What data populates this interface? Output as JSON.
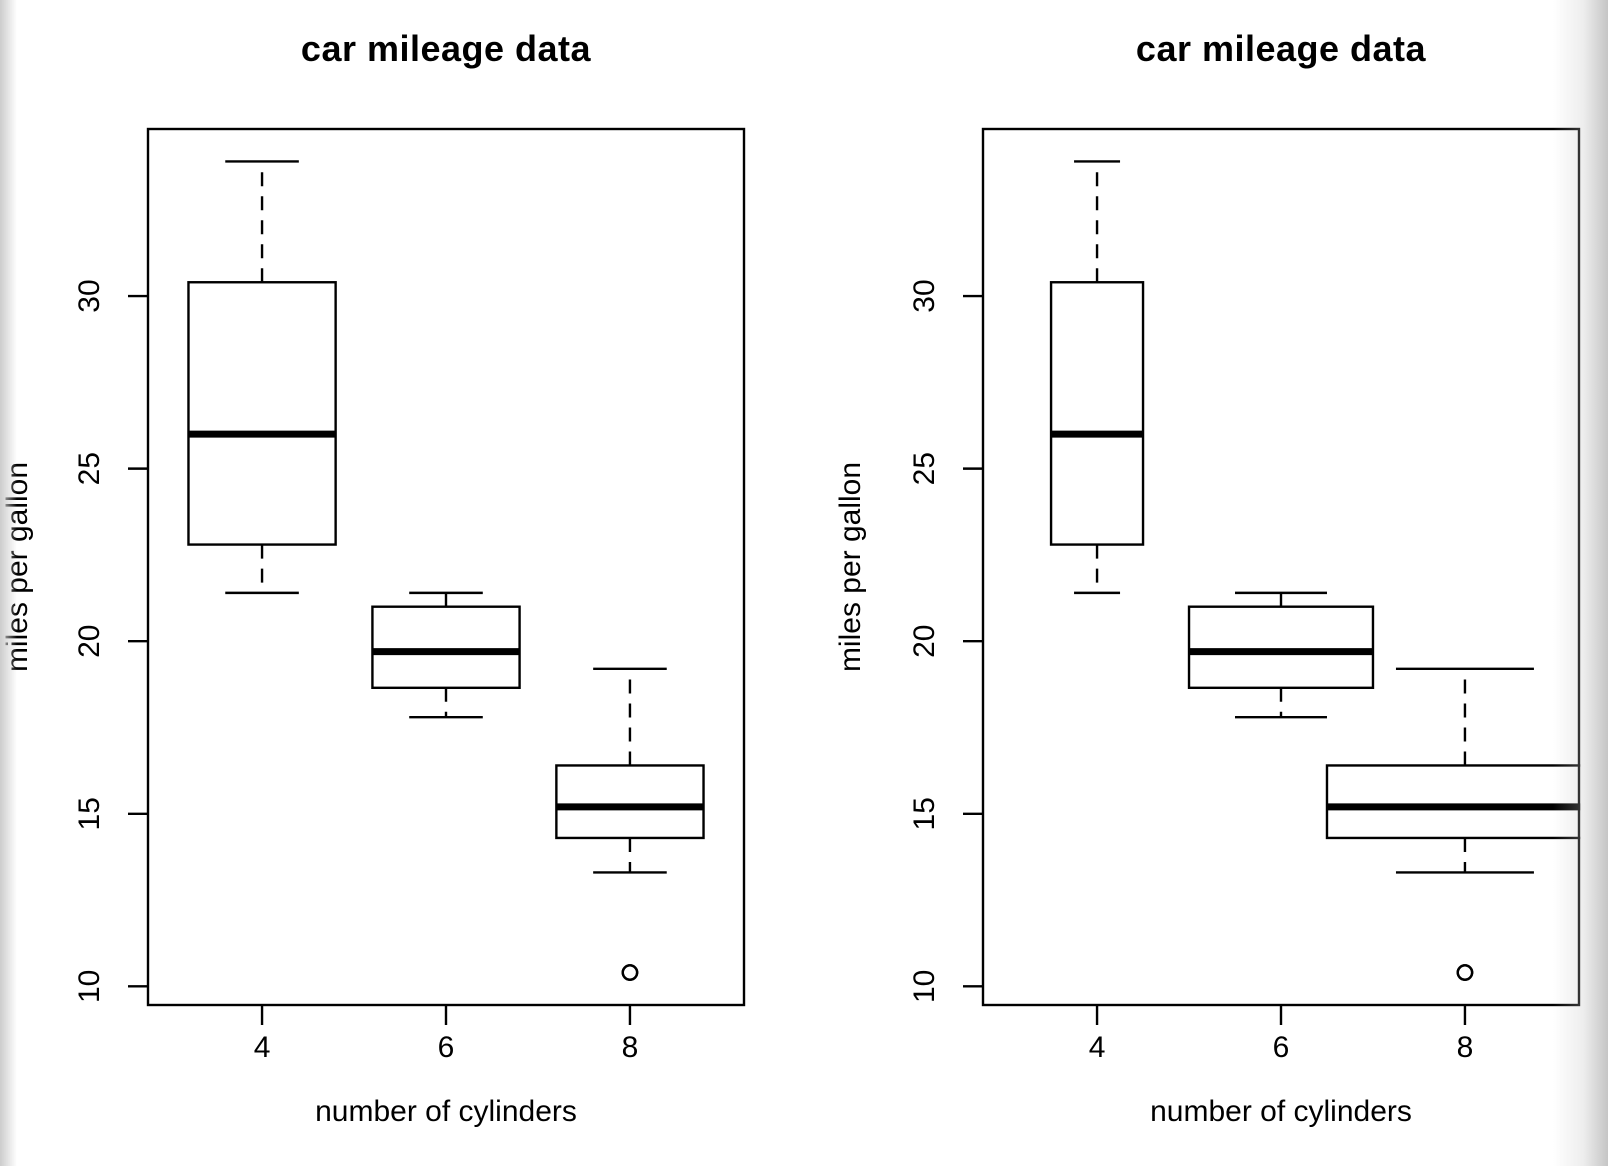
{
  "figure": {
    "background": "#ffffff",
    "line_color": "#000000",
    "edge_shade_color": "#c5c5c5"
  },
  "chart_data": [
    {
      "type": "boxplot",
      "title": "car mileage data",
      "xlabel": "number of cylinders",
      "ylabel": "miles per gallon",
      "categories": [
        "4",
        "6",
        "8"
      ],
      "y_ticks": [
        10,
        15,
        20,
        25,
        30
      ],
      "ylim": [
        9.46,
        34.84
      ],
      "xlim": [
        0.38,
        3.62
      ],
      "grid": false,
      "orientation": "vertical",
      "groups": [
        {
          "category": "4",
          "whisker_low": 21.4,
          "q1": 22.8,
          "median": 26.0,
          "q3": 30.4,
          "whisker_high": 33.9,
          "outliers": [],
          "box_width": 0.8
        },
        {
          "category": "6",
          "whisker_low": 17.8,
          "q1": 18.65,
          "median": 19.7,
          "q3": 21.0,
          "whisker_high": 21.4,
          "outliers": [],
          "box_width": 0.8
        },
        {
          "category": "8",
          "whisker_low": 13.3,
          "q1": 14.3,
          "median": 15.2,
          "q3": 16.4,
          "whisker_high": 19.2,
          "outliers": [
            10.4,
            10.4
          ],
          "box_width": 0.8
        }
      ]
    },
    {
      "type": "boxplot",
      "title": "car mileage data",
      "xlabel": "number of cylinders",
      "ylabel": "miles per gallon",
      "categories": [
        "4",
        "6",
        "8"
      ],
      "y_ticks": [
        10,
        15,
        20,
        25,
        30
      ],
      "ylim": [
        9.46,
        34.84
      ],
      "xlim": [
        0.38,
        3.62
      ],
      "grid": false,
      "orientation": "vertical",
      "groups": [
        {
          "category": "4",
          "whisker_low": 21.4,
          "q1": 22.8,
          "median": 26.0,
          "q3": 30.4,
          "whisker_high": 33.9,
          "outliers": [],
          "box_width": 0.5
        },
        {
          "category": "6",
          "whisker_low": 17.8,
          "q1": 18.65,
          "median": 19.7,
          "q3": 21.0,
          "whisker_high": 21.4,
          "outliers": [],
          "box_width": 1.0
        },
        {
          "category": "8",
          "whisker_low": 13.3,
          "q1": 14.3,
          "median": 15.2,
          "q3": 16.4,
          "whisker_high": 19.2,
          "outliers": [
            10.4,
            10.4
          ],
          "box_width": 1.5
        }
      ]
    }
  ]
}
